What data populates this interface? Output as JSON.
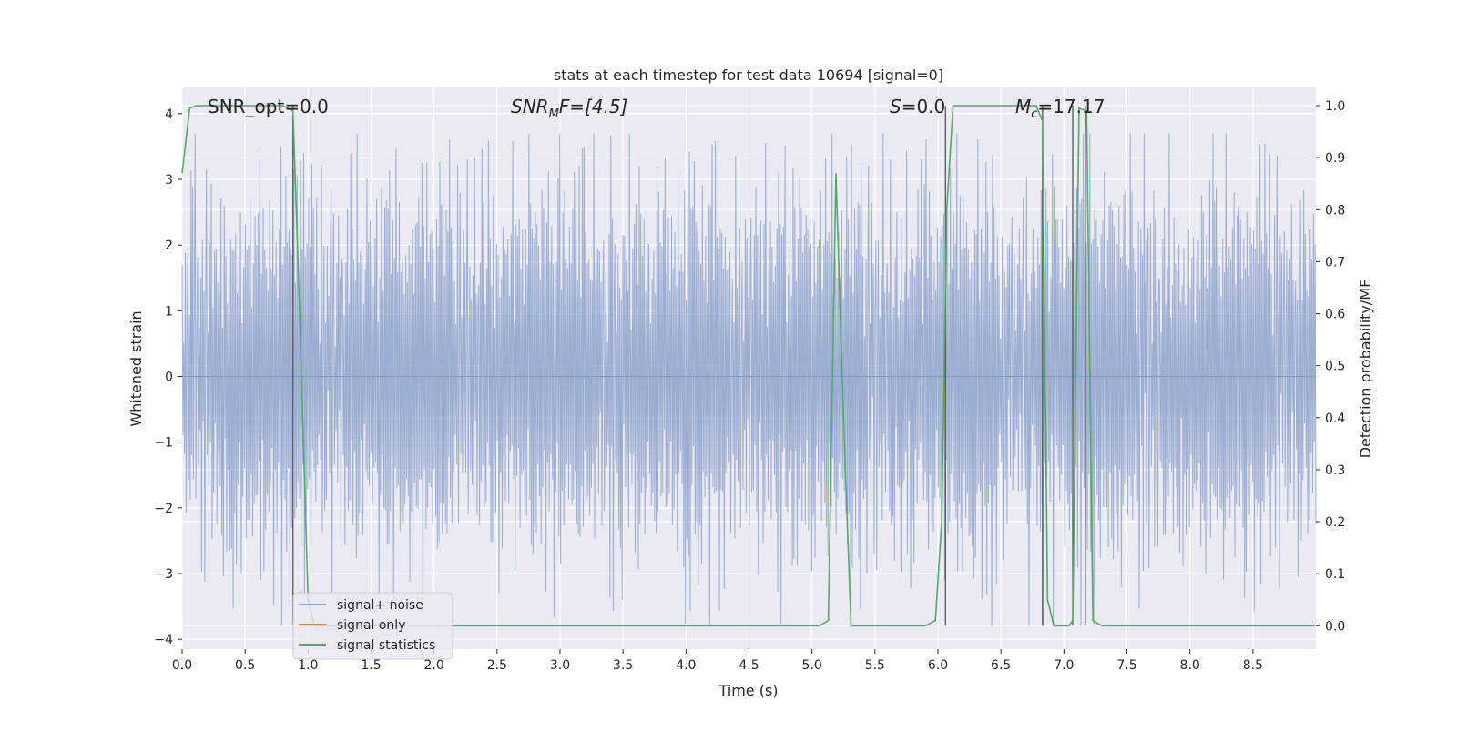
{
  "chart_data": {
    "type": "line",
    "title": "stats at each timestep for test data 10694 [signal=0]",
    "xlabel": "Time (s)",
    "ylabel_left": "Whitened strain",
    "ylabel_right": "Detection probability/MF",
    "xlim": [
      0.0,
      9.0
    ],
    "ylim_left": [
      -4.15,
      4.4
    ],
    "ylim_right": [
      -0.045,
      1.035
    ],
    "x_ticks": [
      0.0,
      0.5,
      1.0,
      1.5,
      2.0,
      2.5,
      3.0,
      3.5,
      4.0,
      4.5,
      5.0,
      5.5,
      6.0,
      6.5,
      7.0,
      7.5,
      8.0,
      8.5
    ],
    "x_tick_labels": [
      "0.0",
      "0.5",
      "1.0",
      "1.5",
      "2.0",
      "2.5",
      "3.0",
      "3.5",
      "4.0",
      "4.5",
      "5.0",
      "5.5",
      "6.0",
      "6.5",
      "7.0",
      "7.5",
      "8.0",
      "8.5"
    ],
    "y_left_ticks": [
      4,
      3,
      2,
      1,
      0,
      -1,
      -2,
      -3,
      -4
    ],
    "y_left_tick_labels": [
      "4",
      "3",
      "2",
      "1",
      "0",
      "−1",
      "−2",
      "−3",
      "−4"
    ],
    "y_right_ticks": [
      1.0,
      0.9,
      0.8,
      0.7,
      0.6,
      0.5,
      0.4,
      0.3,
      0.2,
      0.1,
      0.0
    ],
    "y_right_tick_labels": [
      "1.0",
      "0.9",
      "0.8",
      "0.7",
      "0.6",
      "0.5",
      "0.4",
      "0.3",
      "0.2",
      "0.1",
      "0.0"
    ],
    "grid": true,
    "legend_position": "lower-left",
    "annotations": {
      "snr_opt": "SNR_opt=0.0",
      "snr_mf_main": "SNR",
      "snr_mf_sub": "M",
      "snr_mf_rest": "F=[4.5]",
      "s_main": "S",
      "s_rest": "=0.0",
      "mc_main": "M",
      "mc_sub": "c",
      "mc_rest": "=17.17"
    },
    "series": [
      {
        "name": "signal+ noise",
        "color": "#8ea2cc",
        "axis": "left",
        "description_values": "whitened noise, approx range -3.8 to 3.7",
        "values": [
          2.4,
          -1.6,
          1.2,
          -2.1,
          3.1,
          -3.4,
          0.8,
          2.7,
          -1.9,
          1.5,
          -2.6,
          3.2,
          -0.9,
          2.2,
          -2.4,
          1.8,
          3.6,
          -2.9,
          0.5,
          2.9,
          -2.2,
          1.1,
          -1.5,
          2.6,
          -2.8,
          3.3,
          -1.2,
          2.0,
          -3.1,
          1.7,
          2.5,
          -2.0,
          1.3,
          -2.5,
          3.0,
          -1.8,
          2.3,
          -3.3,
          1.9,
          -2.7,
          2.8,
          -1.4,
          3.4,
          -2.3,
          1.6,
          -1.9,
          2.1,
          -3.0,
          3.7,
          -2.1,
          1.4,
          -2.8,
          2.6,
          -1.7,
          3.1,
          -3.6,
          2.0,
          -1.3,
          2.4,
          -2.6,
          3.0,
          -2.2,
          1.8,
          -2.9,
          2.7,
          -1.6,
          3.2,
          -3.2,
          2.2,
          -2.0,
          2.9,
          -1.8,
          3.5,
          -2.4,
          1.5,
          -3.1,
          2.5,
          -2.3,
          3.3,
          -1.9,
          2.1,
          -3.4,
          2.8,
          -2.5,
          3.6,
          -2.0,
          1.9,
          -3.3,
          3.0,
          -2.7,
          2.4,
          -1.5,
          3.4,
          -2.8,
          2.6,
          -2.1,
          3.1,
          -3.0,
          2.3,
          -1.7,
          3.8,
          -3.8,
          2.7,
          -2.2,
          3.0,
          -2.6,
          2.2,
          -3.5,
          3.2,
          -2.4,
          2.5,
          -1.9,
          3.3,
          -2.9,
          2.8,
          -2.3,
          3.6,
          -3.2,
          2.1,
          -2.0,
          3.4,
          -2.7,
          2.9,
          -3.6,
          2.4,
          -2.5,
          3.1,
          -1.8,
          2.6,
          -3.1,
          3.5,
          -2.2,
          2.3,
          -2.8,
          3.0,
          -3.3,
          2.7,
          -2.6,
          3.2,
          -2.1,
          2.5,
          -3.0,
          3.4,
          -2.4,
          2.0,
          -2.9,
          3.3,
          -3.4,
          2.8,
          -2.3,
          3.1,
          -2.7,
          2.6,
          -3.2,
          3.5,
          -2.5,
          2.2,
          -2.8,
          3.0,
          -3.6,
          2.9,
          -2.0,
          3.4,
          -2.6,
          2.4,
          -3.1,
          3.2,
          -2.2
        ]
      },
      {
        "name": "signal only",
        "color": "#dd8452",
        "axis": "left",
        "values": [
          0,
          0
        ]
      },
      {
        "name": "signal statistics",
        "color": "#55a868",
        "axis": "right",
        "x": [
          0.0,
          0.06,
          0.11,
          0.8,
          0.88,
          0.92,
          1.0,
          1.05,
          5.06,
          5.13,
          5.19,
          5.25,
          5.31,
          5.9,
          5.98,
          6.03,
          6.07,
          6.12,
          6.78,
          6.83,
          6.87,
          6.92,
          7.04,
          7.07,
          7.12,
          7.18,
          7.23,
          7.3,
          8.99
        ],
        "y": [
          0.87,
          0.995,
          1.0,
          1.0,
          0.99,
          0.7,
          0.05,
          0.0,
          0.0,
          0.01,
          0.87,
          0.4,
          0.0,
          0.0,
          0.01,
          0.2,
          0.8,
          1.0,
          1.0,
          0.97,
          0.05,
          0.0,
          0.0,
          0.01,
          0.995,
          0.99,
          0.01,
          0.0,
          0.0
        ]
      }
    ],
    "vertical_markers_x": [
      0.88,
      6.06,
      6.83,
      7.07,
      7.17
    ]
  }
}
